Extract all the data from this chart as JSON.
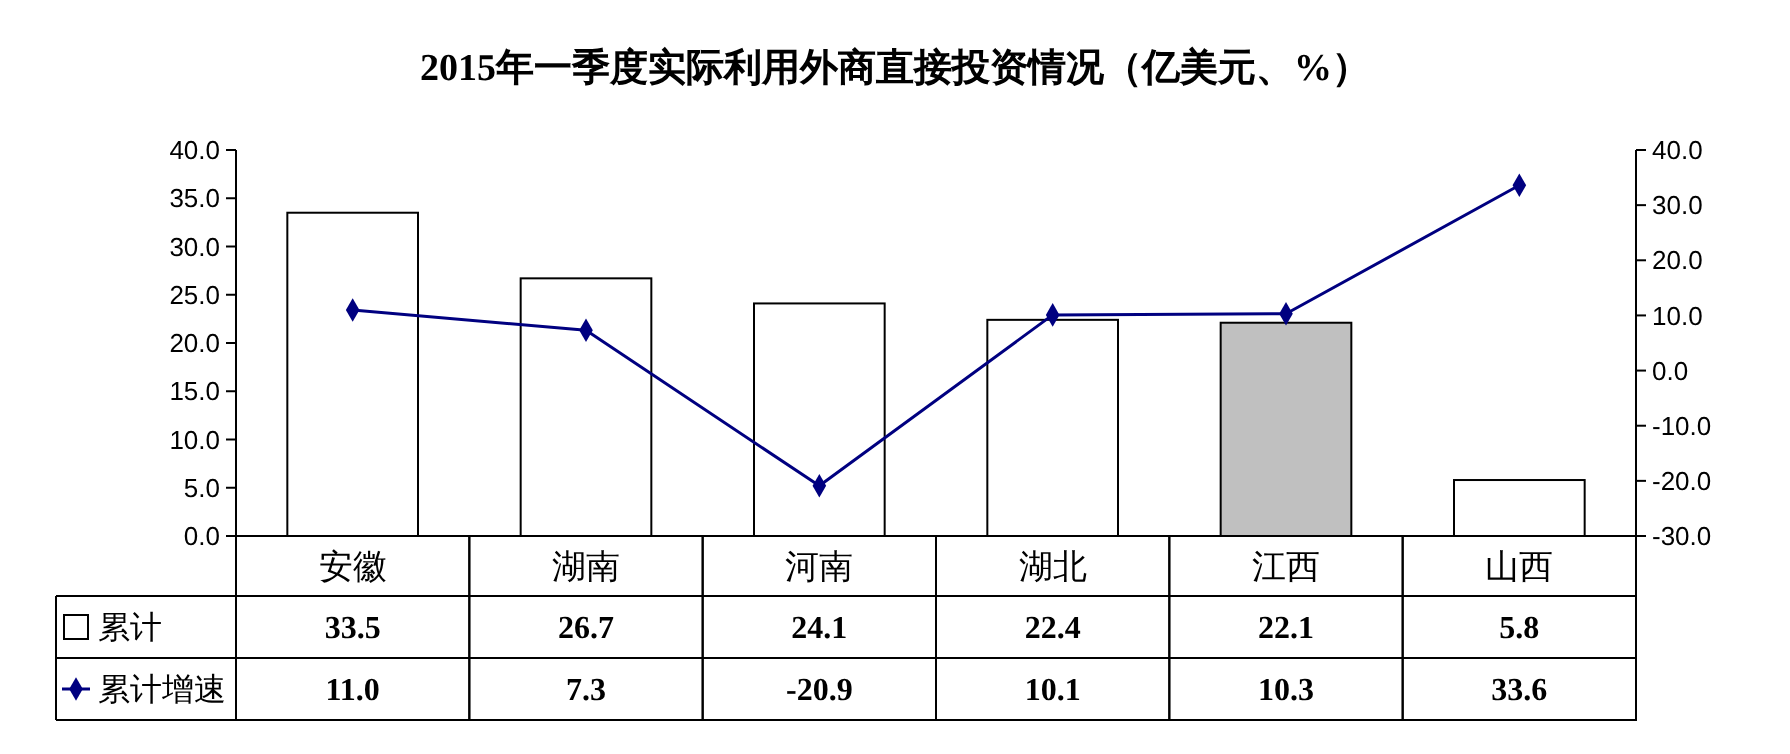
{
  "chart_data": {
    "type": "bar",
    "title": "2015年一季度实际利用外商直接投资情况（亿美元、%）",
    "categories": [
      "安徽",
      "湖南",
      "河南",
      "湖北",
      "江西",
      "山西"
    ],
    "series": [
      {
        "name": "累计",
        "color": "#ffffff",
        "colors": [
          "#ffffff",
          "#ffffff",
          "#ffffff",
          "#ffffff",
          "#c0c0c0",
          "#ffffff"
        ],
        "values": [
          33.5,
          26.7,
          24.1,
          22.4,
          22.1,
          5.8
        ],
        "value_labels": [
          "33.5",
          "26.7",
          "24.1",
          "22.4",
          "22.1",
          "5.8"
        ]
      },
      {
        "name": "累计增速",
        "type": "line",
        "axis": "y2",
        "color": "#000080",
        "values": [
          11.0,
          7.3,
          -20.9,
          10.1,
          10.3,
          33.6
        ],
        "value_labels": [
          "11.0",
          "7.3",
          "-20.9",
          "10.1",
          "10.3",
          "33.6"
        ]
      }
    ],
    "ylim": [
      0,
      40
    ],
    "yticks": [
      {
        "value": 0,
        "label": "0.0"
      },
      {
        "value": 5,
        "label": "5.0"
      },
      {
        "value": 10,
        "label": "10.0"
      },
      {
        "value": 15,
        "label": "15.0"
      },
      {
        "value": 20,
        "label": "20.0"
      },
      {
        "value": 25,
        "label": "25.0"
      },
      {
        "value": 30,
        "label": "30.0"
      },
      {
        "value": 35,
        "label": "35.0"
      },
      {
        "value": 40,
        "label": "40.0"
      }
    ],
    "y2lim": [
      -30,
      40
    ],
    "y2ticks": [
      {
        "value": -30,
        "label": "-30.0"
      },
      {
        "value": -20,
        "label": "-20.0"
      },
      {
        "value": -10,
        "label": "-10.0"
      },
      {
        "value": 0,
        "label": "0.0"
      },
      {
        "value": 10,
        "label": "10.0"
      },
      {
        "value": 20,
        "label": "20.0"
      },
      {
        "value": 30,
        "label": "30.0"
      },
      {
        "value": 40,
        "label": "40.0"
      }
    ],
    "marker": "diamond",
    "grid": false,
    "legend": "bottom left"
  }
}
